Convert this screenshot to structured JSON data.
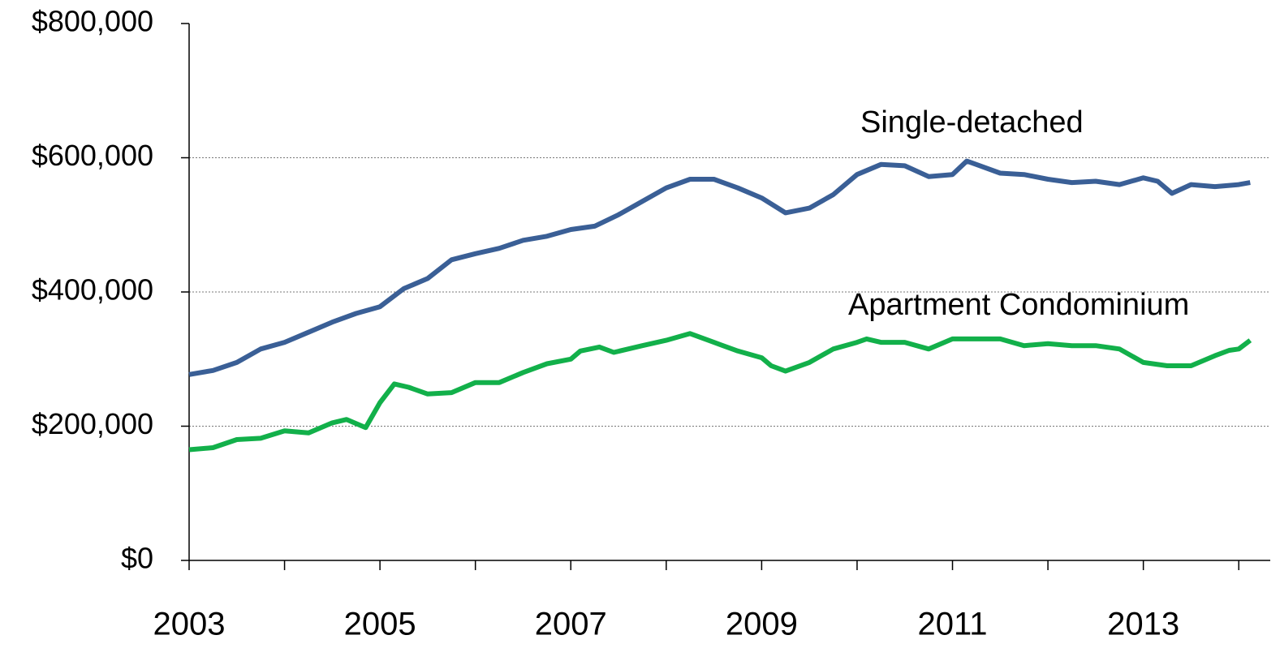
{
  "chart_data": {
    "type": "line",
    "xlim": [
      2003,
      2014.33
    ],
    "xticks": [
      2003,
      2005,
      2007,
      2009,
      2011,
      2013
    ],
    "xminorticks": [
      2004,
      2006,
      2008,
      2010,
      2012,
      2014
    ],
    "ylim": [
      0,
      800000
    ],
    "yticks": [
      {
        "value": 0,
        "label": "$0"
      },
      {
        "value": 200000,
        "label": "$200,000"
      },
      {
        "value": 400000,
        "label": "$400,000"
      },
      {
        "value": 600000,
        "label": "$600,000"
      },
      {
        "value": 800000,
        "label": "$800,000"
      }
    ],
    "grid": true,
    "series": [
      {
        "name": "Single-detached",
        "color": "#3a5f96",
        "x": [
          2003.0,
          2003.25,
          2003.5,
          2003.75,
          2004.0,
          2004.25,
          2004.5,
          2004.75,
          2005.0,
          2005.25,
          2005.5,
          2005.75,
          2006.0,
          2006.25,
          2006.5,
          2006.75,
          2007.0,
          2007.25,
          2007.5,
          2007.75,
          2008.0,
          2008.25,
          2008.5,
          2008.75,
          2009.0,
          2009.25,
          2009.5,
          2009.75,
          2010.0,
          2010.25,
          2010.5,
          2010.75,
          2011.0,
          2011.15,
          2011.25,
          2011.5,
          2011.75,
          2012.0,
          2012.25,
          2012.5,
          2012.75,
          2013.0,
          2013.15,
          2013.3,
          2013.5,
          2013.75,
          2014.0,
          2014.12
        ],
        "values": [
          277000,
          283000,
          295000,
          315000,
          325000,
          340000,
          355000,
          368000,
          378000,
          405000,
          420000,
          448000,
          457000,
          465000,
          477000,
          483000,
          493000,
          498000,
          515000,
          535000,
          555000,
          568000,
          568000,
          555000,
          540000,
          518000,
          525000,
          545000,
          575000,
          590000,
          588000,
          572000,
          575000,
          595000,
          590000,
          577000,
          575000,
          568000,
          563000,
          565000,
          560000,
          570000,
          565000,
          547000,
          560000,
          557000,
          560000,
          563000
        ]
      },
      {
        "name": "Apartment Condominium",
        "color": "#12b04a",
        "x": [
          2003.0,
          2003.25,
          2003.5,
          2003.75,
          2004.0,
          2004.25,
          2004.5,
          2004.65,
          2004.85,
          2005.0,
          2005.15,
          2005.3,
          2005.5,
          2005.75,
          2006.0,
          2006.25,
          2006.5,
          2006.75,
          2007.0,
          2007.1,
          2007.3,
          2007.45,
          2007.75,
          2008.0,
          2008.25,
          2008.5,
          2008.75,
          2009.0,
          2009.1,
          2009.25,
          2009.5,
          2009.75,
          2010.0,
          2010.1,
          2010.25,
          2010.5,
          2010.75,
          2011.0,
          2011.25,
          2011.5,
          2011.75,
          2012.0,
          2012.25,
          2012.5,
          2012.75,
          2013.0,
          2013.25,
          2013.5,
          2013.75,
          2013.9,
          2014.0,
          2014.12
        ],
        "values": [
          165000,
          168000,
          180000,
          182000,
          193000,
          190000,
          205000,
          210000,
          198000,
          235000,
          263000,
          258000,
          248000,
          250000,
          265000,
          265000,
          280000,
          293000,
          300000,
          312000,
          318000,
          310000,
          320000,
          328000,
          338000,
          325000,
          312000,
          302000,
          290000,
          282000,
          295000,
          315000,
          325000,
          330000,
          325000,
          325000,
          315000,
          330000,
          330000,
          330000,
          320000,
          323000,
          320000,
          320000,
          315000,
          295000,
          290000,
          290000,
          305000,
          313000,
          315000,
          328000
        ]
      }
    ]
  }
}
